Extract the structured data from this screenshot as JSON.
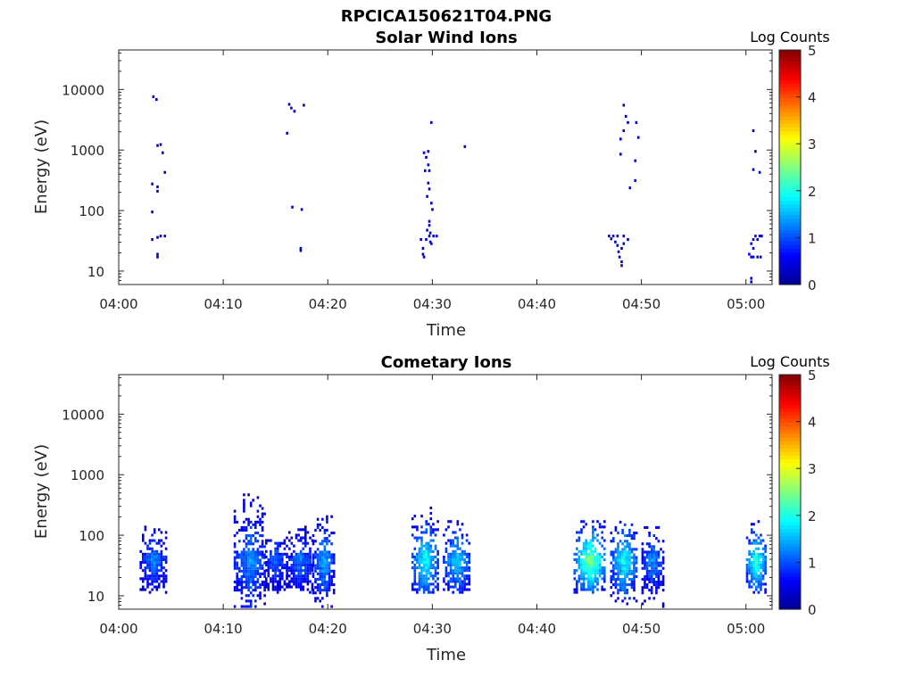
{
  "figure_title": "RPCICA150621T04.PNG",
  "colors": {
    "colormap": [
      "#00008f",
      "#0000ff",
      "#0080ff",
      "#00ffff",
      "#80ff80",
      "#ffff00",
      "#ff8000",
      "#ff0000",
      "#800000"
    ],
    "axis": "#262626"
  },
  "chart_data": [
    {
      "type": "heatmap",
      "title": "Solar Wind Ions",
      "xlabel": "Time",
      "ylabel": "Energy (eV)",
      "yscale": "log",
      "ylim": [
        6,
        45000
      ],
      "xlim": [
        "04:00",
        "05:02.5"
      ],
      "x_ticks": [
        "04:00",
        "04:10",
        "04:20",
        "04:30",
        "04:40",
        "04:50",
        "05:00"
      ],
      "y_ticks": [
        10,
        100,
        1000,
        10000
      ],
      "colorbar": {
        "title": "Log Counts",
        "range": [
          0,
          5
        ],
        "ticks": [
          0,
          1,
          2,
          3,
          4,
          5
        ]
      },
      "cells": [
        [
          3.2,
          8000,
          0.3
        ],
        [
          3.5,
          7200,
          0.3
        ],
        [
          3.6,
          1250,
          0.4
        ],
        [
          3.9,
          1300,
          0.3
        ],
        [
          4.1,
          950,
          0.3
        ],
        [
          4.3,
          450,
          0.3
        ],
        [
          3.1,
          290,
          0.3
        ],
        [
          3.6,
          260,
          0.3
        ],
        [
          3.6,
          220,
          0.3
        ],
        [
          3.1,
          100,
          0.3
        ],
        [
          3.1,
          35,
          0.3
        ],
        [
          3.6,
          38,
          0.4
        ],
        [
          3.9,
          40,
          0.4
        ],
        [
          4.3,
          40,
          0.4
        ],
        [
          3.6,
          18,
          0.3
        ],
        [
          3.6,
          20,
          0.3
        ],
        [
          16.2,
          6000,
          0.3
        ],
        [
          16.4,
          5200,
          0.3
        ],
        [
          16.7,
          4600,
          0.3
        ],
        [
          17.6,
          5800,
          0.3
        ],
        [
          16.0,
          2000,
          0.3
        ],
        [
          16.5,
          120,
          0.3
        ],
        [
          17.4,
          110,
          0.3
        ],
        [
          17.3,
          25,
          0.3
        ],
        [
          17.3,
          23,
          0.3
        ],
        [
          29.8,
          3000,
          0.3
        ],
        [
          29.1,
          950,
          0.3
        ],
        [
          29.5,
          1000,
          0.3
        ],
        [
          29.3,
          800,
          0.3
        ],
        [
          29.5,
          600,
          0.3
        ],
        [
          29.2,
          480,
          0.3
        ],
        [
          29.6,
          480,
          0.3
        ],
        [
          29.5,
          300,
          0.3
        ],
        [
          29.6,
          240,
          0.3
        ],
        [
          29.4,
          180,
          0.3
        ],
        [
          29.8,
          140,
          0.3
        ],
        [
          29.9,
          110,
          0.3
        ],
        [
          29.6,
          70,
          0.4
        ],
        [
          29.6,
          60,
          0.4
        ],
        [
          29.4,
          50,
          0.4
        ],
        [
          29.7,
          45,
          0.4
        ],
        [
          29.6,
          40,
          0.4
        ],
        [
          30.0,
          40,
          0.4
        ],
        [
          30.3,
          40,
          0.4
        ],
        [
          28.8,
          35,
          0.3
        ],
        [
          29.3,
          35,
          0.4
        ],
        [
          29.7,
          32,
          0.4
        ],
        [
          29.8,
          30,
          0.4
        ],
        [
          29.0,
          25,
          0.3
        ],
        [
          29.0,
          20,
          0.3
        ],
        [
          29.1,
          18,
          0.3
        ],
        [
          33.0,
          1200,
          0.3
        ],
        [
          48.2,
          5800,
          0.3
        ],
        [
          48.4,
          3800,
          0.3
        ],
        [
          48.6,
          3000,
          0.3
        ],
        [
          49.4,
          3000,
          0.3
        ],
        [
          48.2,
          2200,
          0.3
        ],
        [
          47.9,
          1600,
          0.3
        ],
        [
          49.6,
          1700,
          0.3
        ],
        [
          47.9,
          900,
          0.3
        ],
        [
          49.3,
          700,
          0.3
        ],
        [
          49.3,
          330,
          0.3
        ],
        [
          48.8,
          250,
          0.3
        ],
        [
          46.8,
          40,
          0.4
        ],
        [
          47.2,
          40,
          0.4
        ],
        [
          47.6,
          40,
          0.4
        ],
        [
          48.2,
          40,
          0.3
        ],
        [
          48.6,
          35,
          0.3
        ],
        [
          47.0,
          36,
          0.4
        ],
        [
          47.4,
          32,
          0.4
        ],
        [
          47.6,
          28,
          0.3
        ],
        [
          48.2,
          30,
          0.3
        ],
        [
          48.0,
          25,
          0.3
        ],
        [
          47.7,
          22,
          0.3
        ],
        [
          47.8,
          18,
          0.3
        ],
        [
          48.0,
          15,
          0.3
        ],
        [
          48.0,
          13,
          0.3
        ],
        [
          60.6,
          2200,
          0.3
        ],
        [
          60.8,
          1000,
          0.3
        ],
        [
          60.6,
          500,
          0.3
        ],
        [
          61.2,
          450,
          0.3
        ],
        [
          60.8,
          40,
          0.4
        ],
        [
          61.2,
          40,
          0.4
        ],
        [
          61.4,
          40,
          0.4
        ],
        [
          60.6,
          35,
          0.5
        ],
        [
          61.0,
          35,
          0.5
        ],
        [
          60.4,
          30,
          0.5
        ],
        [
          60.6,
          25,
          0.6
        ],
        [
          60.2,
          20,
          0.5
        ],
        [
          60.4,
          18,
          0.5
        ],
        [
          60.6,
          18,
          0.5
        ],
        [
          61.0,
          18,
          0.5
        ],
        [
          61.3,
          18,
          0.5
        ],
        [
          60.4,
          7,
          0.3
        ],
        [
          60.4,
          8,
          0.3
        ]
      ]
    },
    {
      "type": "heatmap",
      "title": "Cometary Ions",
      "xlabel": "Time",
      "ylabel": "Energy (eV)",
      "yscale": "log",
      "ylim": [
        6,
        45000
      ],
      "xlim": [
        "04:00",
        "05:02.5"
      ],
      "x_ticks": [
        "04:00",
        "04:10",
        "04:20",
        "04:30",
        "04:40",
        "04:50",
        "05:00"
      ],
      "y_ticks": [
        10,
        100,
        1000,
        10000
      ],
      "colorbar": {
        "title": "Log Counts",
        "range": [
          0,
          5
        ],
        "ticks": [
          0,
          1,
          2,
          3,
          4,
          5
        ]
      },
      "clusters": [
        {
          "t0": 2.0,
          "t1": 4.5,
          "emin": 12,
          "emax": 150,
          "peak": 1.3
        },
        {
          "t0": 11.0,
          "t1": 14.0,
          "emin": 7,
          "emax": 600,
          "peak": 1.4
        },
        {
          "t0": 14.0,
          "t1": 16.0,
          "emin": 12,
          "emax": 100,
          "peak": 1.2
        },
        {
          "t0": 16.0,
          "t1": 18.5,
          "emin": 12,
          "emax": 150,
          "peak": 1.3
        },
        {
          "t0": 18.5,
          "t1": 20.5,
          "emin": 7,
          "emax": 220,
          "peak": 1.5
        },
        {
          "t0": 28.0,
          "t1": 30.5,
          "emin": 12,
          "emax": 350,
          "peak": 2.0
        },
        {
          "t0": 31.0,
          "t1": 33.5,
          "emin": 12,
          "emax": 200,
          "peak": 1.8
        },
        {
          "t0": 43.5,
          "t1": 46.5,
          "emin": 12,
          "emax": 200,
          "peak": 2.6
        },
        {
          "t0": 47.0,
          "t1": 49.5,
          "emin": 7,
          "emax": 180,
          "peak": 2.0
        },
        {
          "t0": 50.0,
          "t1": 52.0,
          "emin": 7,
          "emax": 150,
          "peak": 1.4
        },
        {
          "t0": 60.0,
          "t1": 61.8,
          "emin": 12,
          "emax": 180,
          "peak": 2.3
        }
      ]
    }
  ]
}
